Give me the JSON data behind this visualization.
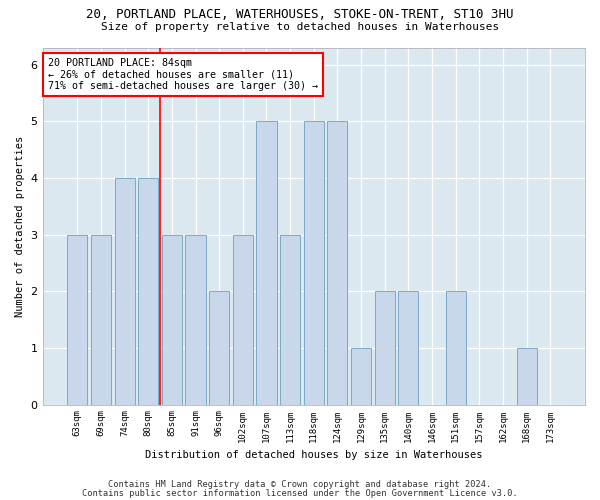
{
  "title": "20, PORTLAND PLACE, WATERHOUSES, STOKE-ON-TRENT, ST10 3HU",
  "subtitle": "Size of property relative to detached houses in Waterhouses",
  "xlabel": "Distribution of detached houses by size in Waterhouses",
  "ylabel": "Number of detached properties",
  "categories": [
    "63sqm",
    "69sqm",
    "74sqm",
    "80sqm",
    "85sqm",
    "91sqm",
    "96sqm",
    "102sqm",
    "107sqm",
    "113sqm",
    "118sqm",
    "124sqm",
    "129sqm",
    "135sqm",
    "140sqm",
    "146sqm",
    "151sqm",
    "157sqm",
    "162sqm",
    "168sqm",
    "173sqm"
  ],
  "values": [
    3,
    3,
    4,
    4,
    3,
    3,
    2,
    3,
    5,
    3,
    5,
    5,
    1,
    2,
    2,
    0,
    2,
    0,
    0,
    1,
    0
  ],
  "bar_color": "#c8d8ea",
  "bar_edge_color": "#7aaac8",
  "vline_x": 3.5,
  "vline_color": "red",
  "annotation_text": "20 PORTLAND PLACE: 84sqm\n← 26% of detached houses are smaller (11)\n71% of semi-detached houses are larger (30) →",
  "annotation_box_color": "white",
  "annotation_box_edge": "red",
  "ylim": [
    0,
    6.3
  ],
  "yticks": [
    0,
    1,
    2,
    3,
    4,
    5,
    6
  ],
  "footer1": "Contains HM Land Registry data © Crown copyright and database right 2024.",
  "footer2": "Contains public sector information licensed under the Open Government Licence v3.0.",
  "bg_color": "#ffffff",
  "plot_bg_color": "#dce8f0"
}
